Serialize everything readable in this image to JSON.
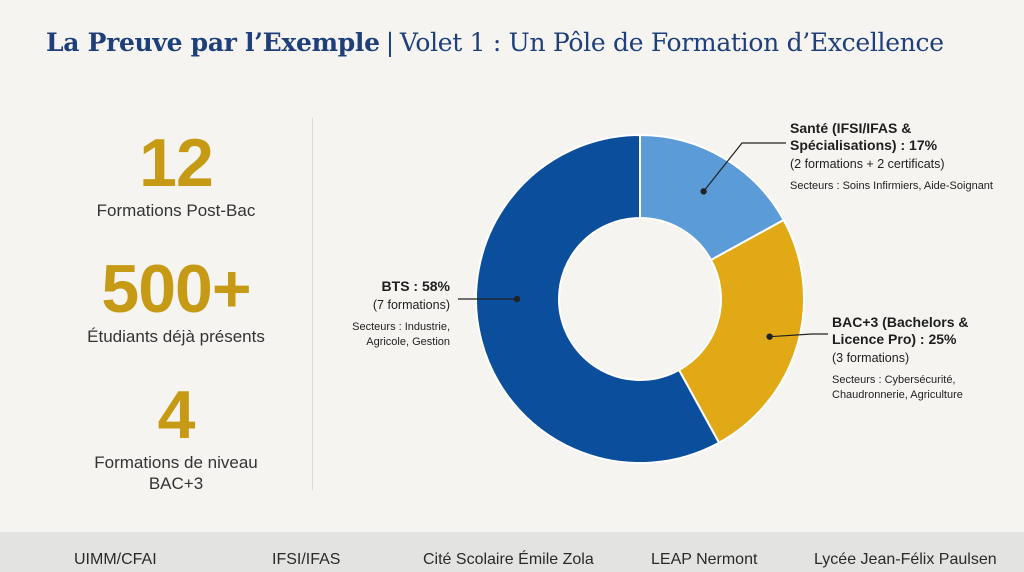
{
  "header": {
    "title_bold": "La Preuve par l’Exemple",
    "separator": "|",
    "title_rest": "Volet 1 : Un Pôle de Formation d’Excellence"
  },
  "stats": [
    {
      "value": "12",
      "label": "Formations Post-Bac"
    },
    {
      "value": "500+",
      "label": "Étudiants déjà présents"
    },
    {
      "value": "4",
      "label_line1": "Formations de niveau",
      "label_line2": "BAC+3"
    }
  ],
  "chart_data": {
    "type": "pie",
    "style": "donut",
    "slices": [
      {
        "label": "BTS",
        "value": 58,
        "color": "#0b4e9c"
      },
      {
        "label": "Santé (IFSI/IFAS & Spécialisations)",
        "value": 17,
        "color": "#5b9bd8"
      },
      {
        "label": "BAC+3 (Bachelors & Licence Pro)",
        "value": 25,
        "color": "#e1a916"
      }
    ],
    "annotations": {
      "sante": {
        "line1": "Santé (IFSI/IFAS &",
        "line2": "Spécialisations) : 17%",
        "sub": "(2 formations + 2 certificats)",
        "sectors": "Secteurs : Soins Infirmiers, Aide-Soignant"
      },
      "bts": {
        "line1": "BTS : 58%",
        "sub": "(7 formations)",
        "sectors1": "Secteurs : Industrie,",
        "sectors2": "Agricole, Gestion"
      },
      "bac3": {
        "line1": "BAC+3 (Bachelors &",
        "line2": "Licence Pro) : 25%",
        "sub": "(3 formations)",
        "sectors1": "Secteurs : Cybersécurité,",
        "sectors2": "Chaudronnerie, Agriculture"
      }
    }
  },
  "footer": {
    "partners": [
      "UIMM/CFAI",
      "IFSI/IFAS",
      "Cité Scolaire Émile Zola",
      "LEAP Nermont",
      "Lycée Jean-Félix Paulsen"
    ]
  }
}
